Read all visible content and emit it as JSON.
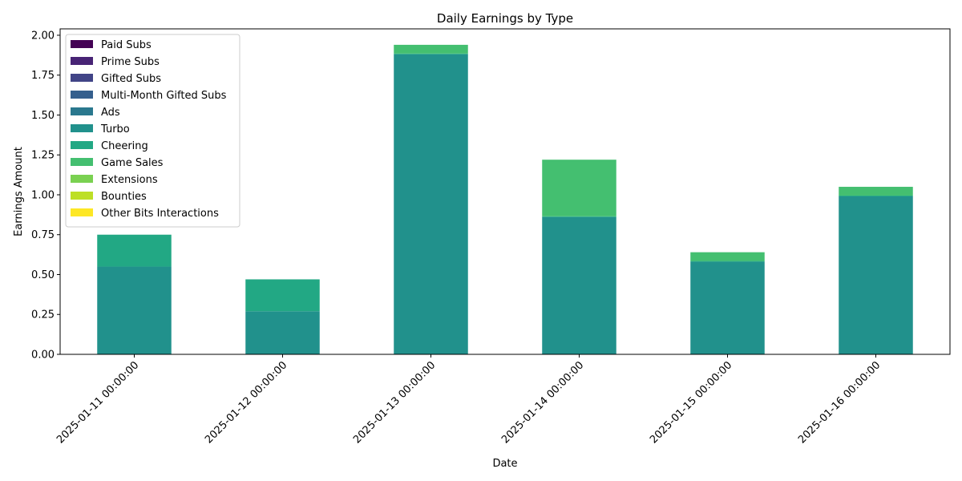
{
  "chart_data": {
    "type": "bar",
    "stacked": true,
    "title": "Daily Earnings by Type",
    "xlabel": "Date",
    "ylabel": "Earnings Amount",
    "ylim": [
      0,
      2.04
    ],
    "yticks": [
      "0.00",
      "0.25",
      "0.50",
      "0.75",
      "1.00",
      "1.25",
      "1.50",
      "1.75",
      "2.00"
    ],
    "ytick_values": [
      0,
      0.25,
      0.5,
      0.75,
      1.0,
      1.25,
      1.5,
      1.75,
      2.0
    ],
    "categories": [
      "2025-01-11 00:00:00",
      "2025-01-12 00:00:00",
      "2025-01-13 00:00:00",
      "2025-01-14 00:00:00",
      "2025-01-15 00:00:00",
      "2025-01-16 00:00:00"
    ],
    "legend_position": "top-left",
    "grid": false,
    "series": [
      {
        "name": "Paid Subs",
        "color": "#440154",
        "values": [
          0,
          0,
          0,
          0,
          0,
          0
        ]
      },
      {
        "name": "Prime Subs",
        "color": "#482475",
        "values": [
          0,
          0,
          0,
          0,
          0,
          0
        ]
      },
      {
        "name": "Gifted Subs",
        "color": "#414487",
        "values": [
          0,
          0,
          0,
          0,
          0,
          0
        ]
      },
      {
        "name": "Multi-Month Gifted Subs",
        "color": "#355f8d",
        "values": [
          0,
          0,
          0,
          0,
          0,
          0
        ]
      },
      {
        "name": "Ads",
        "color": "#2a788e",
        "values": [
          0,
          0,
          0,
          0,
          0,
          0
        ]
      },
      {
        "name": "Turbo",
        "color": "#21918c",
        "values": [
          0.55,
          0.27,
          1.88,
          0.86,
          0.58,
          0.99
        ]
      },
      {
        "name": "Cheering",
        "color": "#22a884",
        "values": [
          0.2,
          0.2,
          0.005,
          0.005,
          0.005,
          0.005
        ]
      },
      {
        "name": "Game Sales",
        "color": "#44bf70",
        "values": [
          0,
          0,
          0.055,
          0.355,
          0.055,
          0.055
        ]
      },
      {
        "name": "Extensions",
        "color": "#7ad151",
        "values": [
          0,
          0,
          0,
          0,
          0,
          0
        ]
      },
      {
        "name": "Bounties",
        "color": "#bddf26",
        "values": [
          0,
          0,
          0,
          0,
          0,
          0
        ]
      },
      {
        "name": "Other Bits Interactions",
        "color": "#fde725",
        "values": [
          0,
          0,
          0,
          0,
          0,
          0
        ]
      }
    ]
  }
}
